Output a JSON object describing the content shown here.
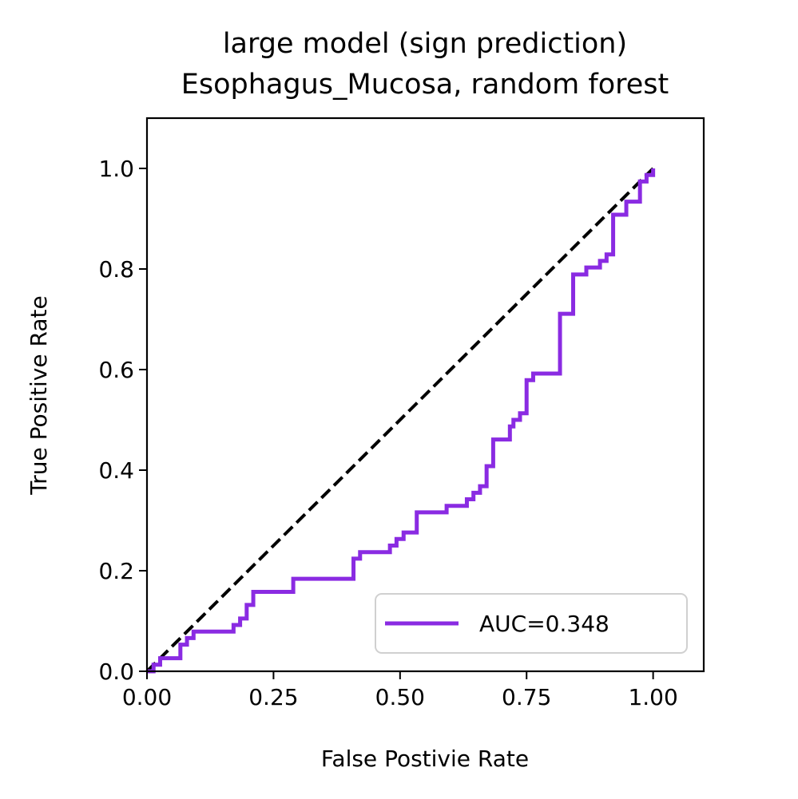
{
  "chart_data": {
    "type": "line",
    "title_line1": "large model (sign prediction)",
    "title_line2": "Esophagus_Mucosa, random forest",
    "xlabel": "False Postivie Rate",
    "ylabel": "True Positive Rate",
    "xlim": [
      0.0,
      1.1
    ],
    "ylim": [
      0.0,
      1.1
    ],
    "xticks": [
      0.0,
      0.25,
      0.5,
      0.75,
      1.0
    ],
    "xtick_labels": [
      "0.00",
      "0.25",
      "0.50",
      "0.75",
      "1.00"
    ],
    "yticks": [
      0.0,
      0.2,
      0.4,
      0.6,
      0.8,
      1.0
    ],
    "ytick_labels": [
      "0.0",
      "0.2",
      "0.4",
      "0.6",
      "0.8",
      "1.0"
    ],
    "grid": false,
    "legend_position": "lower-right",
    "series": [
      {
        "name": "AUC=0.348",
        "color": "#8a2be2",
        "x": [
          0.0,
          0.013,
          0.013,
          0.026,
          0.026,
          0.066,
          0.066,
          0.079,
          0.079,
          0.092,
          0.092,
          0.171,
          0.171,
          0.184,
          0.184,
          0.197,
          0.197,
          0.21,
          0.21,
          0.289,
          0.289,
          0.408,
          0.408,
          0.421,
          0.421,
          0.48,
          0.48,
          0.493,
          0.493,
          0.507,
          0.507,
          0.533,
          0.533,
          0.592,
          0.592,
          0.632,
          0.632,
          0.645,
          0.645,
          0.658,
          0.658,
          0.671,
          0.671,
          0.684,
          0.684,
          0.717,
          0.717,
          0.724,
          0.724,
          0.737,
          0.737,
          0.75,
          0.75,
          0.763,
          0.763,
          0.816,
          0.816,
          0.842,
          0.842,
          0.868,
          0.868,
          0.895,
          0.895,
          0.908,
          0.908,
          0.921,
          0.921,
          0.947,
          0.947,
          0.974,
          0.974,
          0.987,
          0.987,
          1.0,
          1.0
        ],
        "y": [
          0.0,
          0.0,
          0.013,
          0.013,
          0.026,
          0.026,
          0.053,
          0.053,
          0.066,
          0.066,
          0.079,
          0.079,
          0.092,
          0.092,
          0.105,
          0.105,
          0.132,
          0.132,
          0.158,
          0.158,
          0.184,
          0.184,
          0.224,
          0.224,
          0.237,
          0.237,
          0.25,
          0.25,
          0.263,
          0.263,
          0.276,
          0.276,
          0.316,
          0.316,
          0.329,
          0.329,
          0.342,
          0.342,
          0.355,
          0.355,
          0.368,
          0.368,
          0.408,
          0.408,
          0.461,
          0.461,
          0.487,
          0.487,
          0.5,
          0.5,
          0.513,
          0.513,
          0.579,
          0.579,
          0.592,
          0.592,
          0.711,
          0.711,
          0.789,
          0.789,
          0.803,
          0.803,
          0.816,
          0.816,
          0.829,
          0.829,
          0.908,
          0.908,
          0.934,
          0.934,
          0.974,
          0.974,
          0.987,
          0.987,
          1.0
        ]
      },
      {
        "name": "",
        "color": "#000000",
        "style": "dashed",
        "x": [
          0.0,
          1.0
        ],
        "y": [
          0.0,
          1.0
        ]
      }
    ]
  }
}
